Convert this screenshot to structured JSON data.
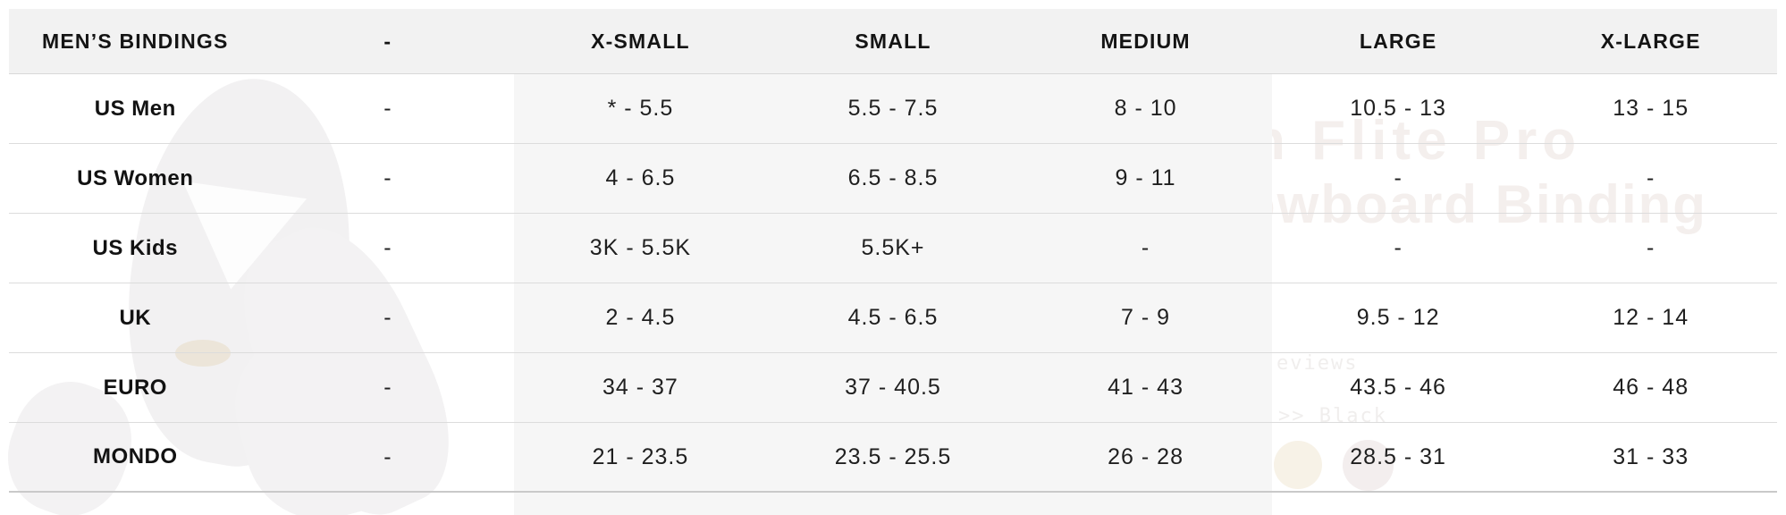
{
  "table": {
    "header": [
      "MEN’S BINDINGS",
      "-",
      "X-SMALL",
      "SMALL",
      "MEDIUM",
      "LARGE",
      "X-LARGE"
    ],
    "rows": [
      {
        "label": "US Men",
        "cells": [
          "-",
          "* - 5.5",
          "5.5 - 7.5",
          "8 - 10",
          "10.5 - 13",
          "13 - 15"
        ]
      },
      {
        "label": "US Women",
        "cells": [
          "-",
          "4 - 6.5",
          "6.5 - 8.5",
          "9 - 11",
          "-",
          "-"
        ]
      },
      {
        "label": "US Kids",
        "cells": [
          "-",
          "3K - 5.5K",
          "5.5K+",
          "-",
          "-",
          "-"
        ]
      },
      {
        "label": "UK",
        "cells": [
          "-",
          "2 - 4.5",
          "4.5 - 6.5",
          "7 - 9",
          "9.5 - 12",
          "12 - 14"
        ]
      },
      {
        "label": "EURO",
        "cells": [
          "-",
          "34 - 37",
          "37 - 40.5",
          "41 - 43",
          "43.5 - 46",
          "46 - 48"
        ]
      },
      {
        "label": "MONDO",
        "cells": [
          "-",
          "21 - 23.5",
          "23.5 - 25.5",
          "26 - 28",
          "28.5 - 31",
          "31 - 33"
        ]
      }
    ]
  },
  "watermark": {
    "title_line1": "n Flite Pro",
    "title_line2": "owboard Binding",
    "reviews_text": "eviews",
    "color_text": ">> Black",
    "swatch_colors": [
      "#f7f2e7",
      "#f3eeee"
    ]
  },
  "colors": {
    "header_bg": "#f2f2f2",
    "band_bg": "#f6f6f6",
    "row_border": "#dcdcdc",
    "bottom_border": "#c9c9c9",
    "text": "#1b1b1b",
    "watermark_text": "#f4efed"
  }
}
